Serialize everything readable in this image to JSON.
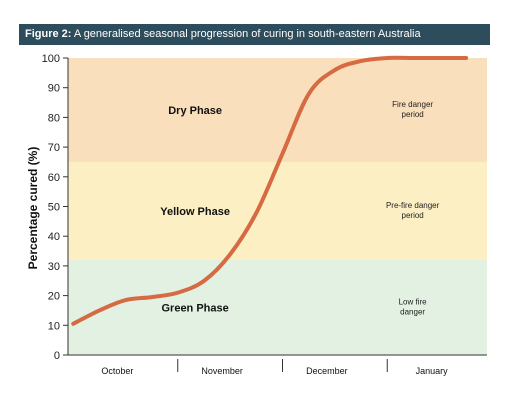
{
  "figure": {
    "label": "Figure 2:",
    "caption": "A generalised seasonal progression of curing in south-eastern Australia"
  },
  "chart_data": {
    "type": "line",
    "ylabel": "Percentage cured (%)",
    "xlabel": "",
    "ylim": [
      0,
      100
    ],
    "yticks": [
      0,
      10,
      20,
      30,
      40,
      50,
      60,
      70,
      80,
      90,
      100
    ],
    "categories": [
      "October",
      "November",
      "December",
      "January"
    ],
    "series": [
      {
        "x": [
          0.0,
          0.25,
          0.5,
          0.75,
          1.0,
          1.25,
          1.5,
          1.75,
          2.0,
          2.25,
          2.5,
          2.75,
          3.0,
          3.25,
          3.5,
          3.75
        ],
        "y": [
          10.5,
          15,
          18.5,
          19.5,
          21,
          25,
          34,
          48,
          68,
          88,
          96,
          99,
          100,
          100,
          100,
          100
        ]
      }
    ],
    "bands": [
      {
        "name": "Green Phase",
        "range": [
          0,
          32
        ],
        "color": "#e2f1e2",
        "note": "Low fire danger"
      },
      {
        "name": "Yellow Phase",
        "range": [
          32,
          65
        ],
        "color": "#fbefc3",
        "note": "Pre-fire danger period"
      },
      {
        "name": "Dry Phase",
        "range": [
          65,
          100
        ],
        "color": "#f9dfbb",
        "note": "Fire danger period"
      }
    ],
    "line_color": "#d66a43",
    "grid": false,
    "legend": "none"
  }
}
